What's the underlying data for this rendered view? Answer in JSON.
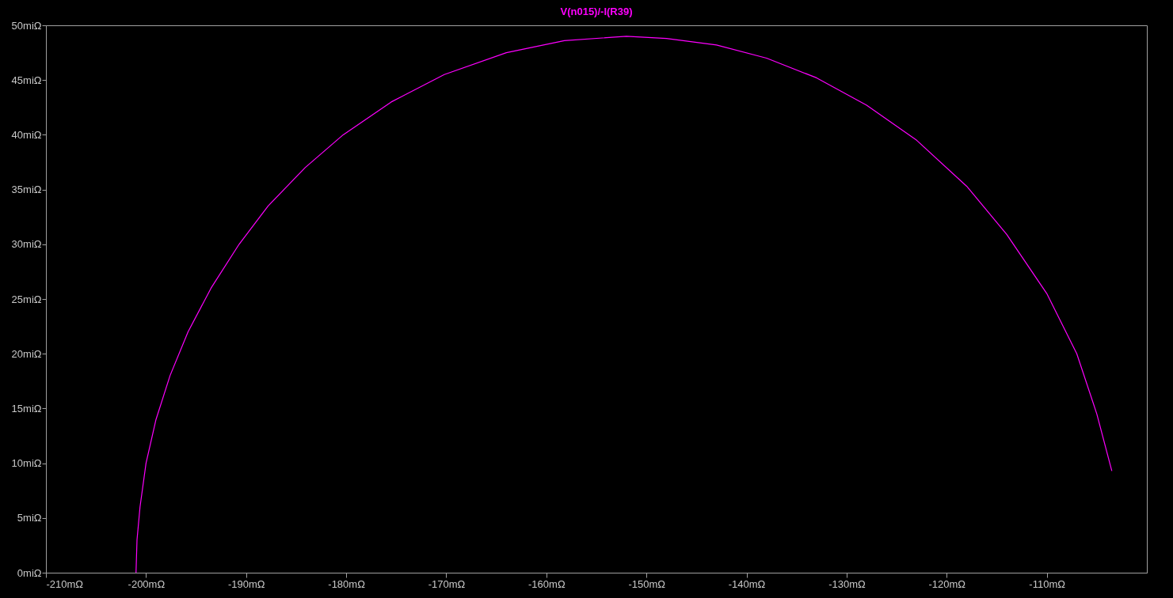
{
  "chart_data": {
    "type": "line",
    "x": [
      -201,
      -200.9,
      -200.6,
      -200,
      -199,
      -197.6,
      -195.8,
      -193.5,
      -190.7,
      -187.8,
      -184.1,
      -180.3,
      -175.5,
      -170.2,
      -164,
      -158.2,
      -152,
      -148,
      -143,
      -138,
      -133,
      -128,
      -123,
      -118,
      -114,
      -110,
      -107,
      -105,
      -103.5
    ],
    "series": [
      {
        "name": "V(n015)/-I(R39)",
        "color": "#ff00ff",
        "values": [
          0,
          3,
          6,
          10,
          14,
          18,
          22,
          26,
          30,
          33.5,
          37,
          40,
          43,
          45.5,
          47.5,
          48.6,
          49,
          48.8,
          48.2,
          47,
          45.2,
          42.7,
          39.5,
          35.3,
          30.9,
          25.5,
          20,
          14.5,
          9.3
        ]
      }
    ],
    "xlim": [
      -210,
      -100
    ],
    "xticks": [
      {
        "value": -210,
        "label": "-210mΩ"
      },
      {
        "value": -200,
        "label": "-200mΩ"
      },
      {
        "value": -190,
        "label": "-190mΩ"
      },
      {
        "value": -180,
        "label": "-180mΩ"
      },
      {
        "value": -170,
        "label": "-170mΩ"
      },
      {
        "value": -160,
        "label": "-160mΩ"
      },
      {
        "value": -150,
        "label": "-150mΩ"
      },
      {
        "value": -140,
        "label": "-140mΩ"
      },
      {
        "value": -130,
        "label": "-130mΩ"
      },
      {
        "value": -120,
        "label": "-120mΩ"
      },
      {
        "value": -110,
        "label": "-110mΩ"
      }
    ],
    "ylim": [
      0,
      50
    ],
    "yticks": [
      {
        "value": 0,
        "label": "0miΩ"
      },
      {
        "value": 5,
        "label": "5miΩ"
      },
      {
        "value": 10,
        "label": "10miΩ"
      },
      {
        "value": 15,
        "label": "15miΩ"
      },
      {
        "value": 20,
        "label": "20miΩ"
      },
      {
        "value": 25,
        "label": "25miΩ"
      },
      {
        "value": 30,
        "label": "30miΩ"
      },
      {
        "value": 35,
        "label": "35miΩ"
      },
      {
        "value": 40,
        "label": "40miΩ"
      },
      {
        "value": 45,
        "label": "45miΩ"
      },
      {
        "value": 50,
        "label": "50miΩ"
      }
    ],
    "grid": false,
    "legend": false
  }
}
